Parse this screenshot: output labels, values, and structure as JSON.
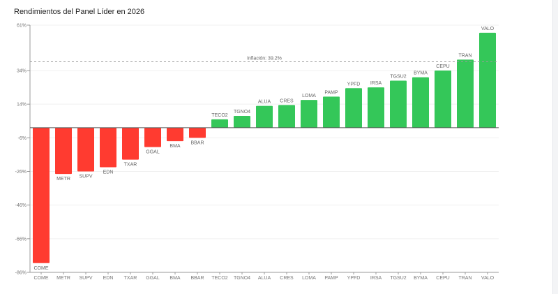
{
  "title": "Rendimientos del Panel Líder en 2026",
  "colors": {
    "positive": "#34c759",
    "negative": "#ff3b30",
    "grid": "#f0f0f0",
    "axis": "#555555"
  },
  "chart_data": {
    "type": "bar",
    "categories": [
      "COME",
      "METR",
      "SUPV",
      "EDN",
      "TXAR",
      "GGAL",
      "BMA",
      "BBAR",
      "TECO2",
      "TGNO4",
      "ALUA",
      "CRES",
      "LOMA",
      "PAMP",
      "YPFD",
      "IRSA",
      "TGSU2",
      "BYMA",
      "CEPU",
      "TRAN",
      "VALO"
    ],
    "values": [
      -80.5,
      -27.5,
      -26.0,
      -23.5,
      -19.0,
      -11.5,
      -8.0,
      -6.0,
      5.0,
      7.0,
      13.0,
      13.5,
      16.5,
      18.5,
      23.5,
      24.0,
      28.0,
      30.0,
      34.0,
      40.5,
      56.5
    ],
    "ylim": [
      -86,
      61
    ],
    "yticks": [
      61,
      34,
      14,
      -6,
      -26,
      -46,
      -66,
      -86
    ],
    "ytick_labels": [
      "61%",
      "34%",
      "14%",
      "-6%",
      "-26%",
      "-46%",
      "-66%",
      "-86%"
    ],
    "reference_line": {
      "value": 39.2,
      "label": "Inflación: 39.2%"
    },
    "grid": true,
    "xlabel": "",
    "ylabel": ""
  }
}
